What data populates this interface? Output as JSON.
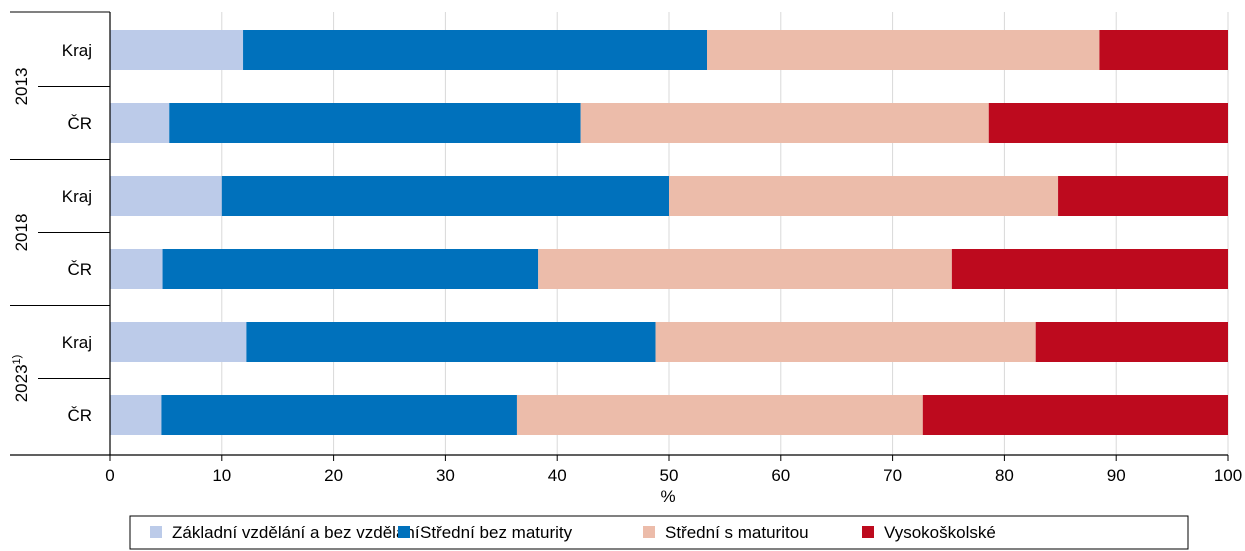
{
  "chart_data": {
    "type": "bar",
    "orientation": "horizontal",
    "stacked": true,
    "xlabel": "%",
    "xlim": [
      0,
      100
    ],
    "xticks": [
      "0",
      "10",
      "20",
      "30",
      "40",
      "50",
      "60",
      "70",
      "80",
      "90",
      "100"
    ],
    "grid": "vertical",
    "legend_position": "bottom",
    "groups": [
      {
        "label": "2013",
        "superscript": "",
        "rows": [
          "Kraj",
          "ČR"
        ]
      },
      {
        "label": "2018",
        "superscript": "",
        "rows": [
          "Kraj",
          "ČR"
        ]
      },
      {
        "label": "2023",
        "superscript": "1)",
        "rows": [
          "Kraj",
          "ČR"
        ]
      }
    ],
    "series": [
      {
        "name": "Základní vzdělání a bez vzdělání",
        "color": "#bccbe9",
        "values": [
          11.9,
          5.3,
          10.0,
          4.7,
          12.2,
          4.6
        ]
      },
      {
        "name": "Střední bez maturity",
        "color": "#0071bc",
        "values": [
          41.5,
          36.8,
          40.0,
          33.6,
          36.6,
          31.8
        ]
      },
      {
        "name": "Střední s maturitou",
        "color": "#ecbcaa",
        "values": [
          35.1,
          36.5,
          34.8,
          37.0,
          34.0,
          36.3
        ]
      },
      {
        "name": "Vysokoškolské",
        "color": "#bd0a1e",
        "values": [
          11.5,
          21.4,
          15.2,
          24.7,
          17.2,
          27.3
        ]
      }
    ]
  }
}
